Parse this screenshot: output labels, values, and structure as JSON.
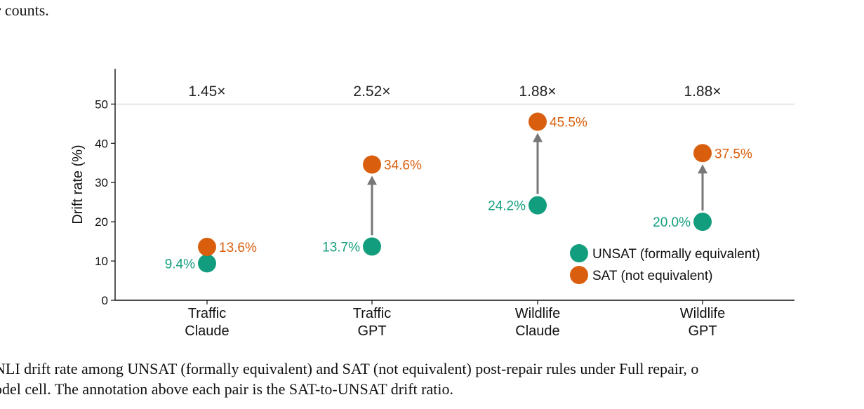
{
  "top_text": "r counts.",
  "caption": {
    "line1": "NLI drift rate among UNSAT (formally equivalent) and SAT (not equivalent) post-repair rules under Full repair, o",
    "line2": "odel cell. The annotation above each pair is the SAT-to-UNSAT drift ratio."
  },
  "chart_data": {
    "type": "scatter",
    "categories": [
      [
        "Traffic",
        "Claude"
      ],
      [
        "Traffic",
        "GPT"
      ],
      [
        "Wildlife",
        "Claude"
      ],
      [
        "Wildlife",
        "GPT"
      ]
    ],
    "ylabel": "Drift rate (%)",
    "ylim": [
      0,
      59
    ],
    "yticks": [
      0,
      10,
      20,
      30,
      40,
      50
    ],
    "reference_line": 50,
    "series": [
      {
        "name": "UNSAT (formally equivalent)",
        "color": "#129e7e",
        "values": [
          9.4,
          13.7,
          24.2,
          20.0
        ],
        "labels": [
          "9.4%",
          "13.7%",
          "24.2%",
          "20.0%"
        ]
      },
      {
        "name": "SAT (not equivalent)",
        "color": "#d95f0e",
        "values": [
          13.6,
          34.6,
          45.5,
          37.5
        ],
        "labels": [
          "13.6%",
          "34.6%",
          "45.5%",
          "37.5%"
        ]
      }
    ],
    "ratios": [
      "1.45×",
      "2.52×",
      "1.88×",
      "1.88×"
    ],
    "arrows": [
      false,
      true,
      true,
      true
    ],
    "legend": "lower-right",
    "arrow_color": "#777777"
  }
}
